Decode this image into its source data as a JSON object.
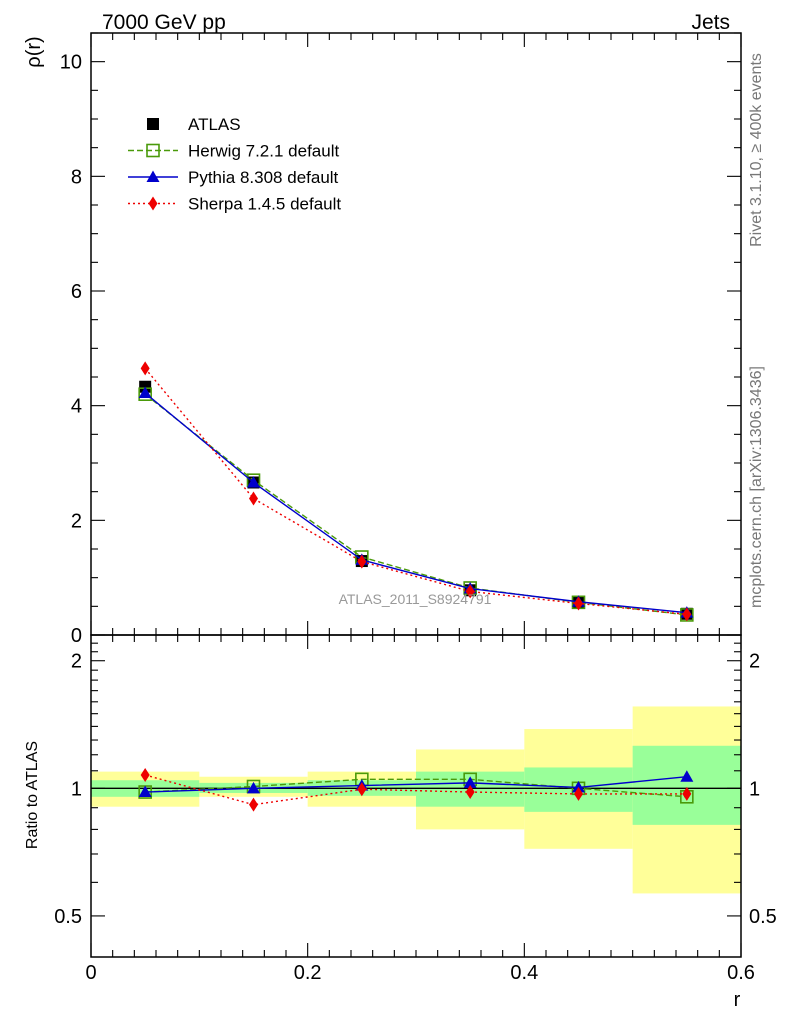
{
  "header": {
    "left": "7000 GeV pp",
    "right": "Jets"
  },
  "side_text": {
    "top": "Rivet 3.1.10, ≥ 400k events",
    "bottom": "mcplots.cern.ch [arXiv:1306.3436]"
  },
  "watermark": "ATLAS_2011_S8924791",
  "chart_data": [
    {
      "type": "line",
      "panel": "main",
      "xlabel": "",
      "ylabel": "ρ(r)",
      "xlim": [
        0,
        0.6
      ],
      "ylim": [
        0,
        10.5
      ],
      "yticks": [
        0,
        2,
        4,
        6,
        8,
        10
      ],
      "ytick_labels": [
        "0",
        "2",
        "4",
        "6",
        "8",
        "10"
      ],
      "x": [
        0.05,
        0.15,
        0.25,
        0.35,
        0.45,
        0.55
      ],
      "legend_position": "top-left",
      "series": [
        {
          "name": "ATLAS",
          "values": [
            4.33,
            2.66,
            1.29,
            0.78,
            0.57,
            0.37
          ],
          "color": "#000000",
          "marker": "square",
          "line": "none"
        },
        {
          "name": "Herwig 7.2.1 default",
          "values": [
            4.2,
            2.7,
            1.36,
            0.82,
            0.57,
            0.35
          ],
          "color": "#4a9a0a",
          "marker": "open-square",
          "line": "dashed"
        },
        {
          "name": "Pythia 8.308 default",
          "values": [
            4.22,
            2.66,
            1.31,
            0.81,
            0.58,
            0.39
          ],
          "color": "#0000cc",
          "marker": "triangle",
          "line": "solid"
        },
        {
          "name": "Sherpa 1.4.5 default",
          "values": [
            4.65,
            2.38,
            1.28,
            0.76,
            0.55,
            0.36
          ],
          "color": "#ee0000",
          "marker": "diamond",
          "line": "dotted"
        }
      ]
    },
    {
      "type": "line",
      "panel": "ratio",
      "xlabel": "r",
      "ylabel": "Ratio to ATLAS",
      "xlim": [
        0,
        0.6
      ],
      "ylim": [
        0.4,
        2.3
      ],
      "yscale": "log",
      "yticks": [
        0.5,
        1,
        2
      ],
      "ytick_labels": [
        "0.5",
        "1",
        "2"
      ],
      "xticks": [
        0,
        0.2,
        0.4,
        0.6
      ],
      "xtick_labels": [
        "0",
        "0.2",
        "0.4",
        "0.6"
      ],
      "x": [
        0.05,
        0.15,
        0.25,
        0.35,
        0.45,
        0.55
      ],
      "bins": [
        [
          0,
          0.1
        ],
        [
          0.1,
          0.2
        ],
        [
          0.2,
          0.3
        ],
        [
          0.3,
          0.4
        ],
        [
          0.4,
          0.5
        ],
        [
          0.5,
          0.6
        ]
      ],
      "stat_band": [
        [
          0.955,
          1.045
        ],
        [
          0.975,
          1.03
        ],
        [
          0.96,
          1.045
        ],
        [
          0.905,
          1.095
        ],
        [
          0.88,
          1.12
        ],
        [
          0.82,
          1.26
        ]
      ],
      "total_band": [
        [
          0.905,
          1.095
        ],
        [
          0.955,
          1.065
        ],
        [
          0.905,
          1.095
        ],
        [
          0.8,
          1.235
        ],
        [
          0.72,
          1.38
        ],
        [
          0.565,
          1.56
        ]
      ],
      "stat_color": "#99ff99",
      "total_color": "#ffff99",
      "series": [
        {
          "name": "Herwig 7.2.1 default",
          "values": [
            0.98,
            1.01,
            1.05,
            1.05,
            1.0,
            0.955
          ],
          "color": "#4a9a0a",
          "marker": "open-square",
          "line": "dashed"
        },
        {
          "name": "Pythia 8.308 default",
          "values": [
            0.98,
            1.0,
            1.015,
            1.03,
            1.005,
            1.065
          ],
          "color": "#0000cc",
          "marker": "triangle",
          "line": "solid"
        },
        {
          "name": "Sherpa 1.4.5 default",
          "values": [
            1.075,
            0.915,
            0.995,
            0.98,
            0.97,
            0.97
          ],
          "color": "#ee0000",
          "marker": "diamond",
          "line": "dotted"
        }
      ]
    }
  ]
}
